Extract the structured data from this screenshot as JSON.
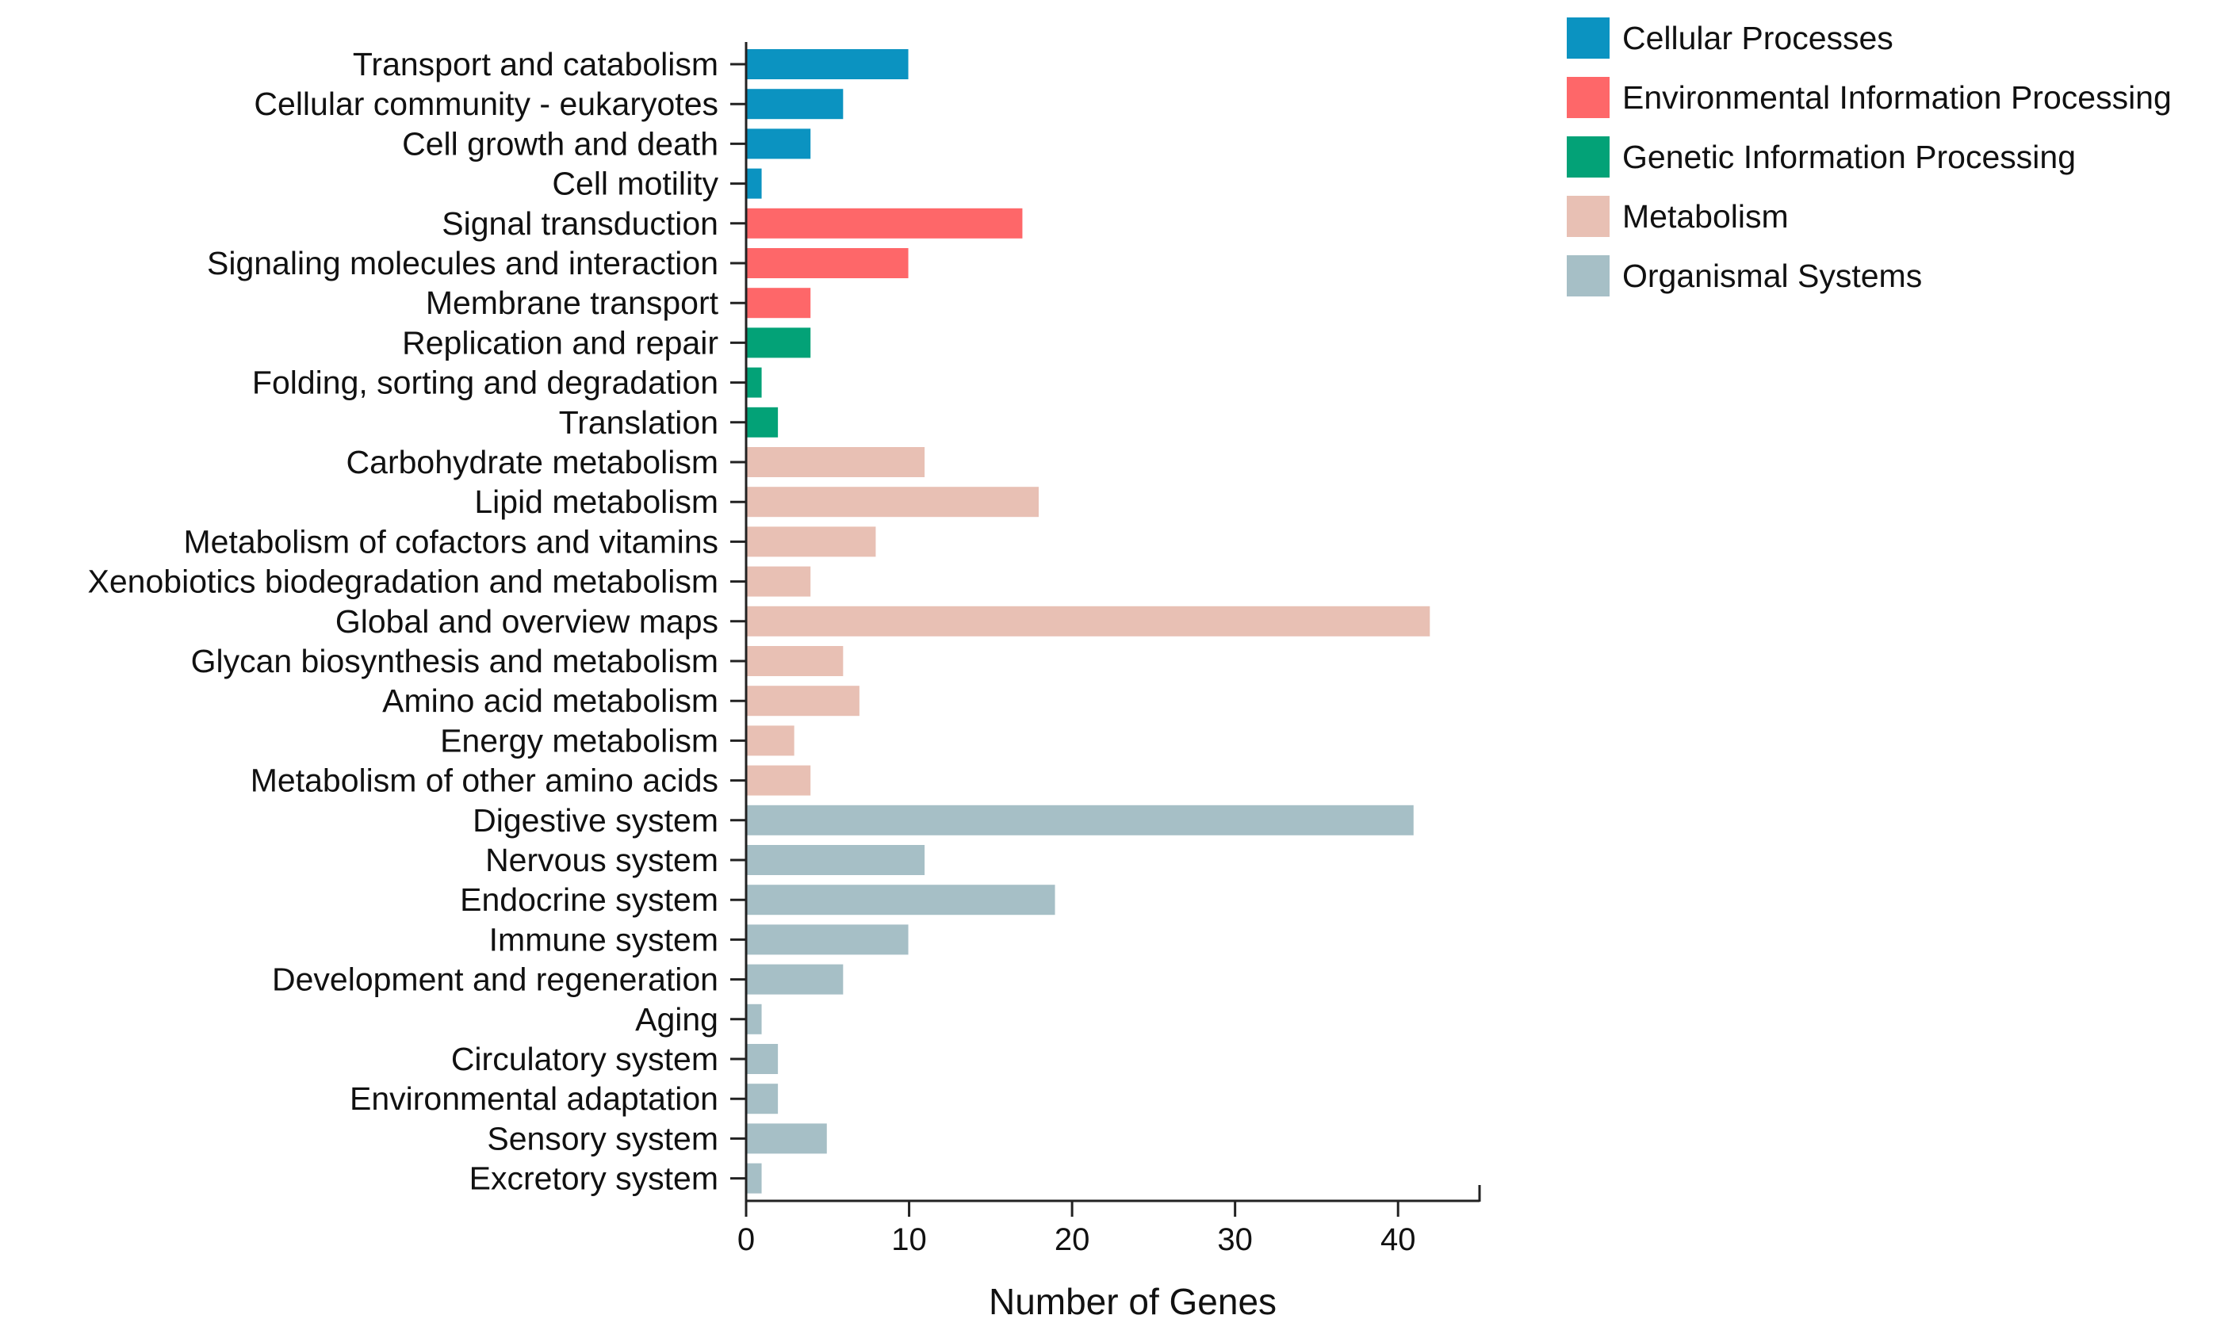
{
  "chart_data": {
    "type": "bar",
    "orientation": "horizontal",
    "xlabel": "Number of Genes",
    "ylabel": "",
    "xlim": [
      0,
      45
    ],
    "xticks": [
      0,
      10,
      20,
      30,
      40
    ],
    "grid": false,
    "legend_position": "top-right",
    "groups": [
      {
        "name": "Cellular Processes",
        "color": "#0b93c1"
      },
      {
        "name": "Environmental Information Processing",
        "color": "#fe6769"
      },
      {
        "name": "Genetic Information Processing",
        "color": "#03a277"
      },
      {
        "name": "Metabolism",
        "color": "#e8c0b4"
      },
      {
        "name": "Organismal Systems",
        "color": "#a6bfc6"
      }
    ],
    "bars": [
      {
        "category": "Transport and catabolism",
        "value": 10,
        "group": "Cellular Processes"
      },
      {
        "category": "Cellular community - eukaryotes",
        "value": 6,
        "group": "Cellular Processes"
      },
      {
        "category": "Cell growth and death",
        "value": 4,
        "group": "Cellular Processes"
      },
      {
        "category": "Cell motility",
        "value": 1,
        "group": "Cellular Processes"
      },
      {
        "category": "Signal transduction",
        "value": 17,
        "group": "Environmental Information Processing"
      },
      {
        "category": "Signaling molecules and interaction",
        "value": 10,
        "group": "Environmental Information Processing"
      },
      {
        "category": "Membrane transport",
        "value": 4,
        "group": "Environmental Information Processing"
      },
      {
        "category": "Replication and repair",
        "value": 4,
        "group": "Genetic Information Processing"
      },
      {
        "category": "Folding, sorting and degradation",
        "value": 1,
        "group": "Genetic Information Processing"
      },
      {
        "category": "Translation",
        "value": 2,
        "group": "Genetic Information Processing"
      },
      {
        "category": "Carbohydrate metabolism",
        "value": 11,
        "group": "Metabolism"
      },
      {
        "category": "Lipid metabolism",
        "value": 18,
        "group": "Metabolism"
      },
      {
        "category": "Metabolism of cofactors and vitamins",
        "value": 8,
        "group": "Metabolism"
      },
      {
        "category": "Xenobiotics biodegradation and metabolism",
        "value": 4,
        "group": "Metabolism"
      },
      {
        "category": "Global and overview maps",
        "value": 42,
        "group": "Metabolism"
      },
      {
        "category": "Glycan biosynthesis and metabolism",
        "value": 6,
        "group": "Metabolism"
      },
      {
        "category": "Amino acid metabolism",
        "value": 7,
        "group": "Metabolism"
      },
      {
        "category": "Energy metabolism",
        "value": 3,
        "group": "Metabolism"
      },
      {
        "category": "Metabolism of other amino acids",
        "value": 4,
        "group": "Metabolism"
      },
      {
        "category": "Digestive system",
        "value": 41,
        "group": "Organismal Systems"
      },
      {
        "category": "Nervous system",
        "value": 11,
        "group": "Organismal Systems"
      },
      {
        "category": "Endocrine system",
        "value": 19,
        "group": "Organismal Systems"
      },
      {
        "category": "Immune system",
        "value": 10,
        "group": "Organismal Systems"
      },
      {
        "category": "Development and regeneration",
        "value": 6,
        "group": "Organismal Systems"
      },
      {
        "category": "Aging",
        "value": 1,
        "group": "Organismal Systems"
      },
      {
        "category": "Circulatory system",
        "value": 2,
        "group": "Organismal Systems"
      },
      {
        "category": "Environmental adaptation",
        "value": 2,
        "group": "Organismal Systems"
      },
      {
        "category": "Sensory system",
        "value": 5,
        "group": "Organismal Systems"
      },
      {
        "category": "Excretory system",
        "value": 1,
        "group": "Organismal Systems"
      }
    ]
  }
}
